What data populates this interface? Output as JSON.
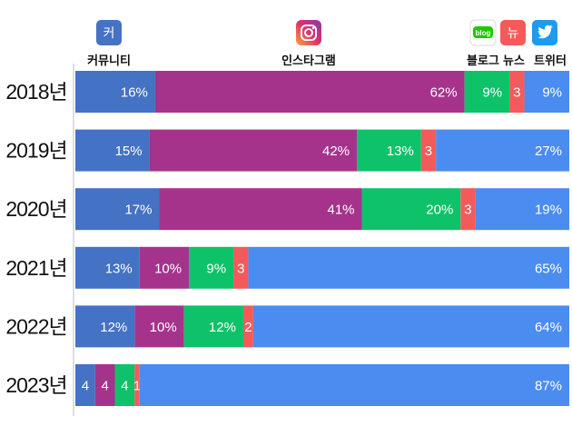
{
  "chart_data": {
    "type": "bar",
    "orientation": "horizontal",
    "stacked": true,
    "normalized": true,
    "categories": [
      "2018년",
      "2019년",
      "2020년",
      "2021년",
      "2022년",
      "2023년"
    ],
    "series": [
      {
        "name": "커뮤니티",
        "icon": "community-icon",
        "icon_text": "커",
        "color": "#4472c4",
        "values": [
          16,
          15,
          17,
          13,
          12,
          4
        ],
        "labels": [
          "16%",
          "15%",
          "17%",
          "13%",
          "12%",
          "4"
        ]
      },
      {
        "name": "인스타그램",
        "icon": "instagram-icon",
        "icon_text": "",
        "color": "#a5338c",
        "values": [
          62,
          42,
          41,
          10,
          10,
          4
        ],
        "labels": [
          "62%",
          "42%",
          "41%",
          "10%",
          "10%",
          "4"
        ]
      },
      {
        "name": "블로그",
        "icon": "blog-icon",
        "icon_text": "blog",
        "color": "#0ec26a",
        "values": [
          9,
          13,
          20,
          9,
          12,
          4
        ],
        "labels": [
          "9%",
          "13%",
          "20%",
          "9%",
          "12%",
          "4"
        ]
      },
      {
        "name": "뉴스",
        "icon": "news-icon",
        "icon_text": "뉴",
        "color": "#f55a5a",
        "values": [
          3,
          3,
          3,
          3,
          2,
          1
        ],
        "labels": [
          "3",
          "3",
          "3",
          "3",
          "2",
          "1"
        ]
      },
      {
        "name": "트위터",
        "icon": "twitter-icon",
        "icon_text": "",
        "color": "#4a8cf0",
        "values": [
          9,
          27,
          19,
          65,
          64,
          87
        ],
        "labels": [
          "9%",
          "27%",
          "19%",
          "65%",
          "64%",
          "87%"
        ]
      }
    ],
    "legend_position": "top",
    "title": "",
    "xlabel": "",
    "ylabel": ""
  }
}
